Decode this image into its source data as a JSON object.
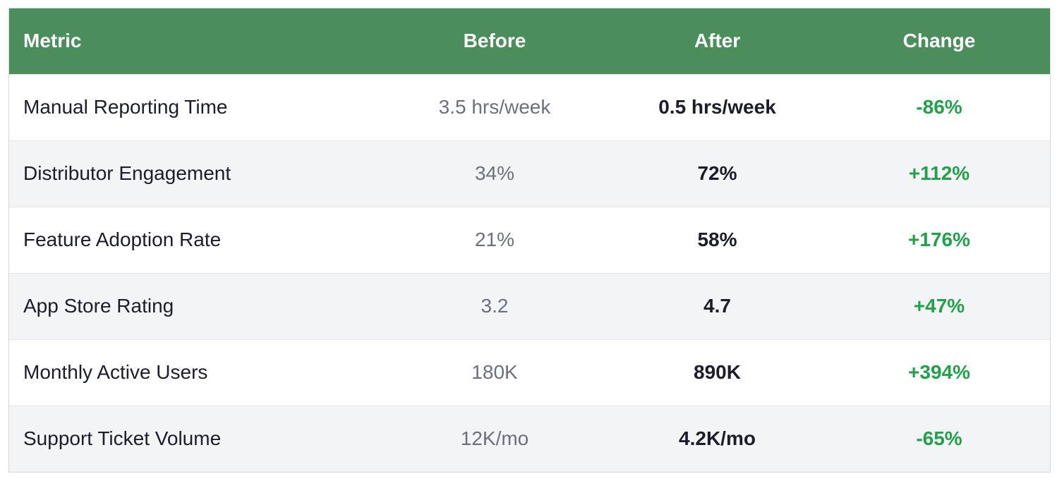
{
  "chart_data": {
    "type": "table",
    "columns": [
      "Metric",
      "Before",
      "After",
      "Change"
    ],
    "rows": [
      {
        "metric": "Manual Reporting Time",
        "before": "3.5 hrs/week",
        "after": "0.5 hrs/week",
        "change": "-86%"
      },
      {
        "metric": "Distributor Engagement",
        "before": "34%",
        "after": "72%",
        "change": "+112%"
      },
      {
        "metric": "Feature Adoption Rate",
        "before": "21%",
        "after": "58%",
        "change": "+176%"
      },
      {
        "metric": "App Store Rating",
        "before": "3.2",
        "after": "4.7",
        "change": "+47%"
      },
      {
        "metric": "Monthly Active Users",
        "before": "180K",
        "after": "890K",
        "change": "+394%"
      },
      {
        "metric": "Support Ticket Volume",
        "before": "12K/mo",
        "after": "4.2K/mo",
        "change": "-65%"
      }
    ]
  },
  "colors": {
    "header_bg": "#4b8d5b",
    "header_text": "#ffffff",
    "change_positive": "#22a04a",
    "before_text": "#6b717c",
    "row_alt_bg": "#f3f4f6"
  }
}
